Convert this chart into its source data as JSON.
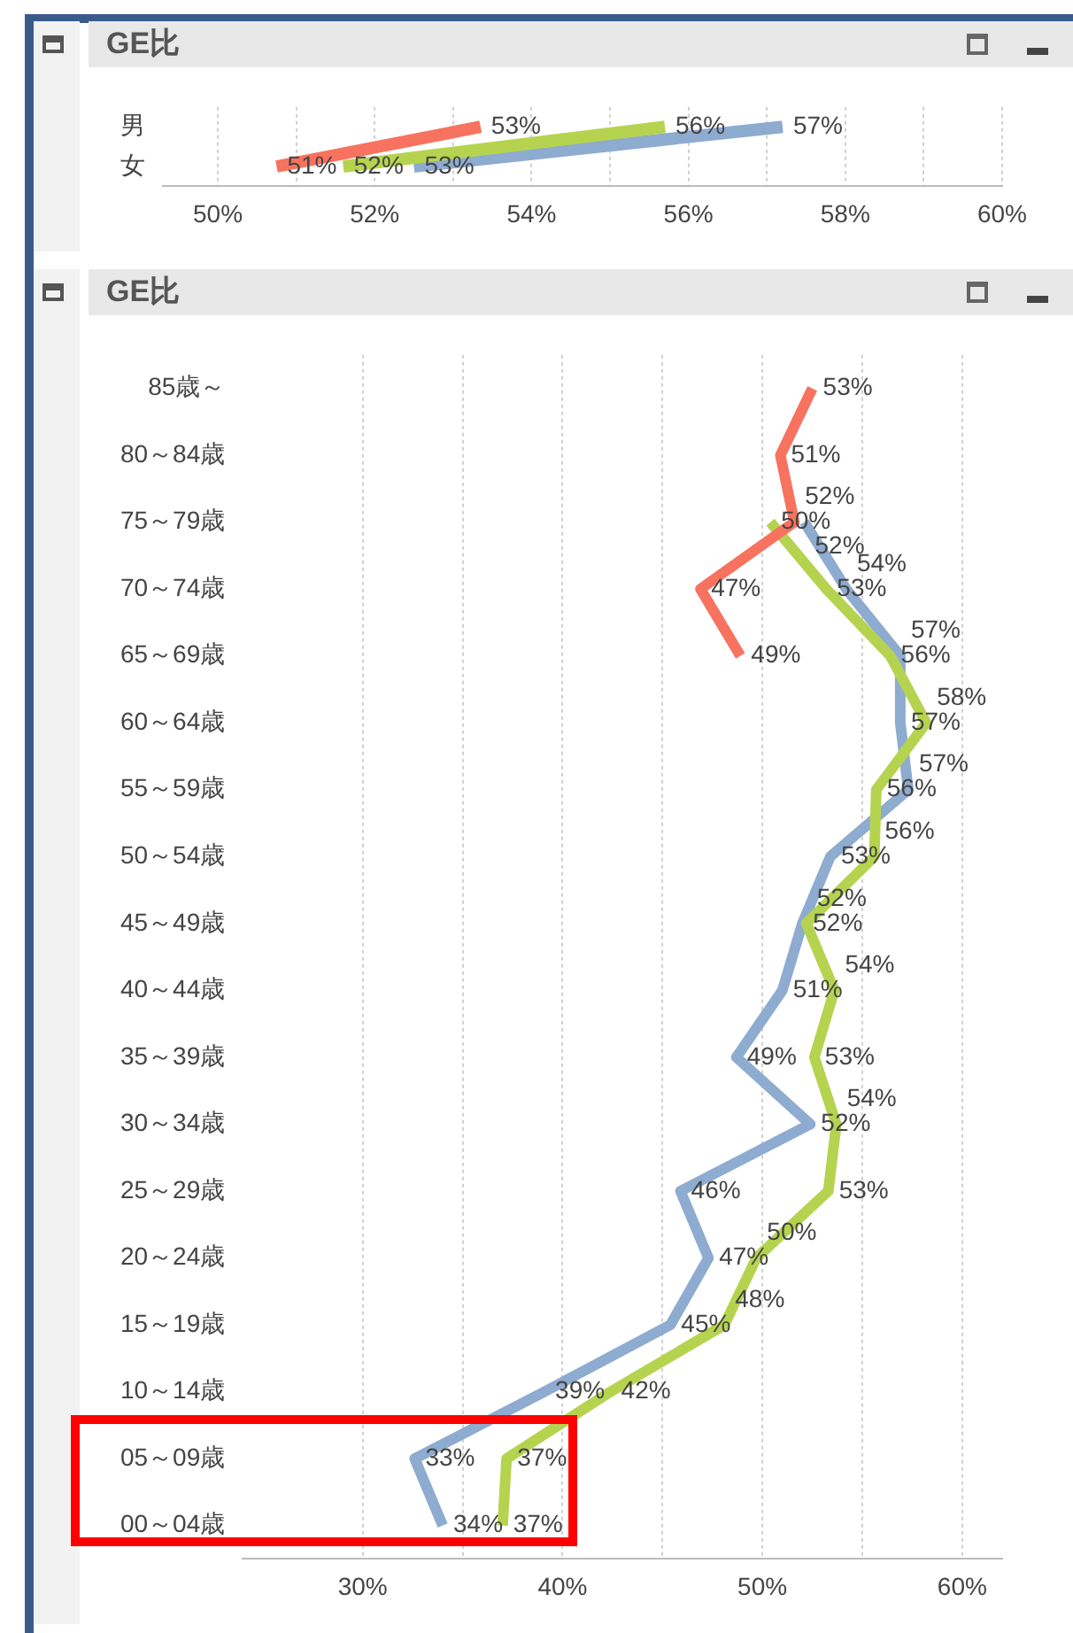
{
  "chart_data": [
    {
      "type": "line",
      "title": "GE比",
      "orientation": "horizontal",
      "categories": [
        "男",
        "女"
      ],
      "series": [
        {
          "color": "#f7735f",
          "values": [
            53.35,
            50.75
          ],
          "value_labels": [
            "53%",
            "51%"
          ]
        },
        {
          "color": "#b6d350",
          "values": [
            55.7,
            51.6
          ],
          "value_labels": [
            "56%",
            "52%"
          ]
        },
        {
          "color": "#8eabd0",
          "values": [
            57.2,
            52.5
          ],
          "value_labels": [
            "57%",
            "53%"
          ]
        }
      ],
      "xlim": [
        49.3,
        60
      ],
      "xticks": [
        {
          "value": 50,
          "label": "50%"
        },
        {
          "value": 51,
          "label": null
        },
        {
          "value": 52,
          "label": "52%"
        },
        {
          "value": 53,
          "label": null
        },
        {
          "value": 54,
          "label": "54%"
        },
        {
          "value": 55,
          "label": null
        },
        {
          "value": 56,
          "label": "56%"
        },
        {
          "value": 57,
          "label": null
        },
        {
          "value": 58,
          "label": "58%"
        },
        {
          "value": 59,
          "label": null
        },
        {
          "value": 60,
          "label": "60%"
        }
      ],
      "grid": "x"
    },
    {
      "type": "line",
      "title": "GE比",
      "orientation": "horizontal",
      "categories": [
        "85歳～",
        "80～84歳",
        "75～79歳",
        "70～74歳",
        "65～69歳",
        "60～64歳",
        "55～59歳",
        "50～54歳",
        "45～49歳",
        "40～44歳",
        "35～39歳",
        "30～34歳",
        "25～29歳",
        "20～24歳",
        "15～19歳",
        "10～14歳",
        "05～09歳",
        "00～04歳"
      ],
      "series": [
        {
          "color": "#f7735f",
          "values": [
            52.5,
            50.9,
            51.6,
            46.9,
            48.9,
            null,
            null,
            null,
            null,
            null,
            null,
            null,
            null,
            null,
            null,
            null,
            null,
            null
          ],
          "value_labels": [
            "53%",
            "51%",
            "52%",
            "47%",
            "49%",
            null,
            null,
            null,
            null,
            null,
            null,
            null,
            null,
            null,
            null,
            null,
            null,
            null
          ]
        },
        {
          "color": "#b6d350",
          "values": [
            null,
            null,
            50.4,
            53.2,
            56.4,
            58.2,
            55.7,
            55.6,
            52.2,
            53.6,
            52.6,
            53.7,
            53.3,
            49.7,
            48.1,
            42.4,
            37.2,
            37.0
          ],
          "value_labels": [
            null,
            null,
            "50%",
            "53%",
            "56%",
            "58%",
            "56%",
            "56%",
            "52%",
            "54%",
            "53%",
            "54%",
            "53%",
            "50%",
            "48%",
            "42%",
            "37%",
            "37%"
          ]
        },
        {
          "color": "#8eabd0",
          "values": [
            null,
            null,
            52.1,
            54.2,
            56.9,
            56.9,
            57.3,
            53.4,
            52.0,
            51.0,
            48.7,
            52.4,
            45.9,
            47.3,
            45.4,
            39.1,
            32.6,
            34.0
          ],
          "value_labels": [
            null,
            null,
            "52%",
            "54%",
            "57%",
            "57%",
            "57%",
            "53%",
            "52%",
            "51%",
            "49%",
            "52%",
            "46%",
            "47%",
            "45%",
            "39%",
            "33%",
            "34%"
          ]
        }
      ],
      "xlim": [
        24,
        62
      ],
      "xticks": [
        {
          "value": 30,
          "label": "30%"
        },
        {
          "value": 35,
          "label": null
        },
        {
          "value": 40,
          "label": "40%"
        },
        {
          "value": 45,
          "label": null
        },
        {
          "value": 50,
          "label": "50%"
        },
        {
          "value": 55,
          "label": null
        },
        {
          "value": 60,
          "label": "60%"
        }
      ],
      "grid": "x"
    }
  ]
}
